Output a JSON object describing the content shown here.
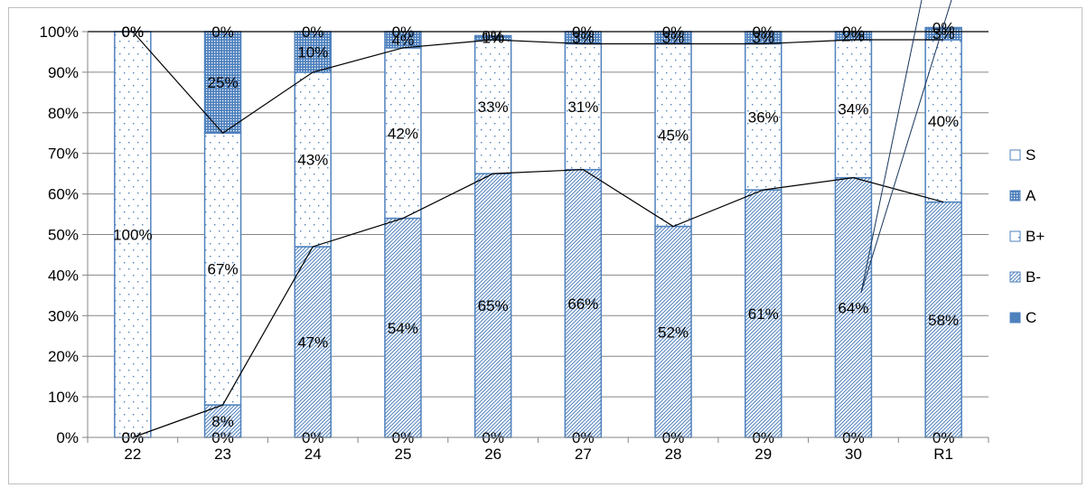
{
  "chart_data": {
    "type": "bar",
    "stacked": true,
    "title": "",
    "xlabel": "",
    "ylabel": "",
    "ylim": [
      0,
      100
    ],
    "categories": [
      "22",
      "23",
      "24",
      "25",
      "26",
      "27",
      "28",
      "29",
      "30",
      "R1"
    ],
    "y_ticks": [
      "0%",
      "10%",
      "20%",
      "30%",
      "40%",
      "50%",
      "60%",
      "70%",
      "80%",
      "90%",
      "100%"
    ],
    "series": [
      {
        "name": "C",
        "pattern": "solid",
        "values": [
          0,
          0,
          0,
          0,
          0,
          0,
          0,
          0,
          0,
          0
        ],
        "labels": [
          "0%",
          "0%",
          "0%",
          "0%",
          "0%",
          "0%",
          "0%",
          "0%",
          "0%",
          "0%"
        ]
      },
      {
        "name": "B-",
        "pattern": "hatch",
        "values": [
          0,
          8,
          47,
          54,
          65,
          66,
          52,
          61,
          64,
          58
        ],
        "labels": [
          "0%",
          "8%",
          "47%",
          "54%",
          "65%",
          "66%",
          "52%",
          "61%",
          "64%",
          "58%"
        ]
      },
      {
        "name": "B+",
        "pattern": "dots",
        "values": [
          100,
          67,
          43,
          42,
          33,
          31,
          45,
          36,
          34,
          40
        ],
        "labels": [
          "100%",
          "67%",
          "43%",
          "42%",
          "33%",
          "31%",
          "45%",
          "36%",
          "34%",
          "40%"
        ]
      },
      {
        "name": "A",
        "pattern": "dense",
        "values": [
          0,
          25,
          10,
          4,
          1,
          3,
          3,
          3,
          2,
          3
        ],
        "labels": [
          "0%",
          "25%",
          "10%",
          "4%",
          "1%",
          "3%",
          "3%",
          "3%",
          "2%",
          "3%"
        ]
      },
      {
        "name": "S",
        "pattern": "empty",
        "values": [
          0,
          0,
          0,
          0,
          0,
          0,
          0,
          0,
          0,
          0
        ],
        "labels": [
          "0%",
          "0%",
          "0%",
          "0%",
          "0%",
          "0%",
          "0%",
          "0%",
          "0%",
          "0%"
        ]
      }
    ],
    "legend": {
      "placement": "right",
      "order": [
        "S",
        "A",
        "B+",
        "B-",
        "C"
      ]
    },
    "grid": true,
    "colors": {
      "bar_edge": "#4f81bd",
      "fill": "#4f81bd",
      "grid": "#868686",
      "series_line": "#000000",
      "annotation_line": "#17365d"
    }
  }
}
